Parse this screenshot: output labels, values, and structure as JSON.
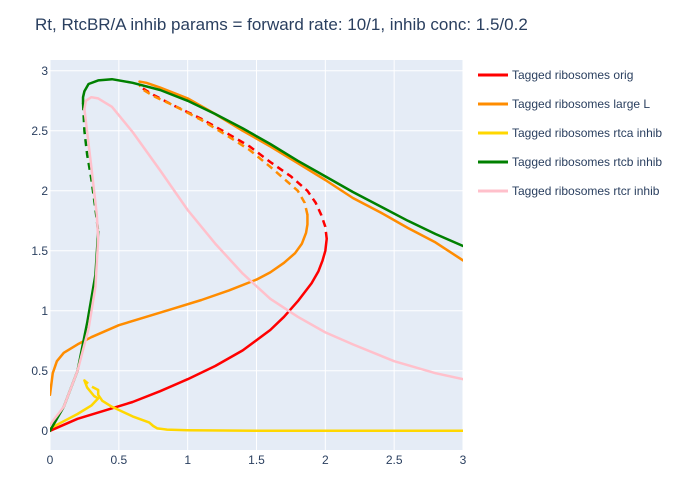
{
  "chart_data": {
    "type": "line",
    "title": "Rt, RtcBR/A inhib params = forward rate: 10/1, inhib conc: 1.5/0.2",
    "xlabel": "",
    "ylabel": "",
    "xlim": [
      0,
      3
    ],
    "ylim": [
      -0.16,
      3.09
    ],
    "x_ticks": [
      0,
      0.5,
      1,
      1.5,
      2,
      2.5,
      3
    ],
    "x_tick_labels": [
      "0",
      "0.5",
      "1",
      "1.5",
      "2",
      "2.5",
      "3"
    ],
    "y_ticks": [
      0,
      0.5,
      1,
      1.5,
      2,
      2.5,
      3
    ],
    "y_tick_labels": [
      "0",
      "0.5",
      "1",
      "1.5",
      "2",
      "2.5",
      "3"
    ],
    "grid": true,
    "legend_position": "right",
    "background": "#E5ECF6",
    "series": [
      {
        "name": "Tagged ribosomes orig",
        "color": "#FF0000",
        "solid": [
          [
            0.0,
            0.0
          ],
          [
            0.2,
            0.1
          ],
          [
            0.4,
            0.17
          ],
          [
            0.6,
            0.24
          ],
          [
            0.8,
            0.33
          ],
          [
            1.0,
            0.43
          ],
          [
            1.2,
            0.54
          ],
          [
            1.4,
            0.67
          ],
          [
            1.6,
            0.84
          ],
          [
            1.7,
            0.95
          ],
          [
            1.8,
            1.08
          ],
          [
            1.9,
            1.23
          ],
          [
            1.95,
            1.33
          ],
          [
            1.98,
            1.42
          ],
          [
            2.0,
            1.5
          ],
          [
            2.01,
            1.6
          ]
        ],
        "dashed": [
          [
            2.01,
            1.6
          ],
          [
            2.0,
            1.7
          ],
          [
            1.97,
            1.8
          ],
          [
            1.93,
            1.9
          ],
          [
            1.87,
            2.0
          ],
          [
            1.75,
            2.12
          ],
          [
            1.6,
            2.24
          ],
          [
            1.45,
            2.37
          ],
          [
            1.3,
            2.47
          ],
          [
            1.1,
            2.6
          ],
          [
            0.9,
            2.71
          ],
          [
            0.75,
            2.8
          ],
          [
            0.65,
            2.87
          ]
        ]
      },
      {
        "name": "Tagged ribosomes large L",
        "color": "#FF8C00",
        "solid": [
          [
            3.0,
            1.42
          ],
          [
            2.8,
            1.57
          ],
          [
            2.6,
            1.69
          ],
          [
            2.4,
            1.82
          ],
          [
            2.2,
            1.94
          ],
          [
            2.0,
            2.09
          ],
          [
            1.8,
            2.23
          ],
          [
            1.6,
            2.37
          ],
          [
            1.4,
            2.5
          ],
          [
            1.2,
            2.64
          ],
          [
            1.0,
            2.77
          ],
          [
            0.8,
            2.86
          ],
          [
            0.7,
            2.9
          ],
          [
            0.65,
            2.91
          ]
        ],
        "solid2": [
          [
            0.0,
            0.3
          ],
          [
            0.02,
            0.48
          ],
          [
            0.05,
            0.58
          ],
          [
            0.1,
            0.65
          ],
          [
            0.2,
            0.72
          ],
          [
            0.3,
            0.78
          ],
          [
            0.5,
            0.88
          ],
          [
            0.7,
            0.95
          ],
          [
            0.9,
            1.02
          ],
          [
            1.1,
            1.09
          ],
          [
            1.3,
            1.17
          ],
          [
            1.5,
            1.26
          ],
          [
            1.6,
            1.32
          ],
          [
            1.7,
            1.4
          ],
          [
            1.78,
            1.48
          ],
          [
            1.83,
            1.56
          ],
          [
            1.86,
            1.65
          ],
          [
            1.87,
            1.72
          ],
          [
            1.87,
            1.8
          ]
        ],
        "dashed": [
          [
            1.87,
            1.8
          ],
          [
            1.85,
            1.9
          ],
          [
            1.8,
            2.0
          ],
          [
            1.72,
            2.08
          ],
          [
            1.6,
            2.2
          ],
          [
            1.45,
            2.34
          ],
          [
            1.3,
            2.45
          ],
          [
            1.1,
            2.59
          ],
          [
            0.9,
            2.71
          ],
          [
            0.75,
            2.79
          ],
          [
            0.68,
            2.84
          ],
          [
            0.65,
            2.88
          ]
        ]
      },
      {
        "name": "Tagged ribosomes rtca inhib",
        "color": "#FFD700",
        "solid": [
          [
            3.0,
            0.0
          ],
          [
            2.5,
            0.0
          ],
          [
            2.0,
            0.0
          ],
          [
            1.5,
            0.0
          ],
          [
            1.0,
            0.005
          ],
          [
            0.85,
            0.01
          ],
          [
            0.78,
            0.02
          ],
          [
            0.75,
            0.04
          ],
          [
            0.72,
            0.07
          ],
          [
            0.6,
            0.12
          ],
          [
            0.45,
            0.2
          ],
          [
            0.38,
            0.25
          ],
          [
            0.35,
            0.3
          ],
          [
            0.35,
            0.34
          ]
        ],
        "dashed": [
          [
            0.35,
            0.34
          ],
          [
            0.3,
            0.37
          ],
          [
            0.25,
            0.42
          ]
        ],
        "solid2": [
          [
            0.25,
            0.42
          ],
          [
            0.27,
            0.36
          ],
          [
            0.32,
            0.29
          ],
          [
            0.35,
            0.27
          ],
          [
            0.3,
            0.21
          ],
          [
            0.2,
            0.14
          ],
          [
            0.1,
            0.08
          ],
          [
            0.0,
            0.02
          ]
        ]
      },
      {
        "name": "Tagged ribosomes rtcb inhib",
        "color": "#008000",
        "solid": [
          [
            3.0,
            1.54
          ],
          [
            2.8,
            1.64
          ],
          [
            2.6,
            1.75
          ],
          [
            2.4,
            1.87
          ],
          [
            2.2,
            1.99
          ],
          [
            2.0,
            2.12
          ],
          [
            1.8,
            2.25
          ],
          [
            1.6,
            2.39
          ],
          [
            1.4,
            2.52
          ],
          [
            1.2,
            2.64
          ],
          [
            1.0,
            2.75
          ],
          [
            0.8,
            2.84
          ],
          [
            0.6,
            2.9
          ],
          [
            0.45,
            2.93
          ],
          [
            0.35,
            2.92
          ],
          [
            0.28,
            2.89
          ],
          [
            0.25,
            2.83
          ],
          [
            0.24,
            2.78
          ],
          [
            0.24,
            2.73
          ]
        ],
        "dashed": [
          [
            0.24,
            2.73
          ],
          [
            0.25,
            2.5
          ],
          [
            0.27,
            2.3
          ],
          [
            0.3,
            2.1
          ],
          [
            0.33,
            1.85
          ],
          [
            0.35,
            1.66
          ]
        ],
        "solid2": [
          [
            0.35,
            1.66
          ],
          [
            0.33,
            1.3
          ],
          [
            0.27,
            0.9
          ],
          [
            0.2,
            0.5
          ],
          [
            0.1,
            0.2
          ],
          [
            0.0,
            0.0
          ]
        ]
      },
      {
        "name": "Tagged ribosomes rtcr inhib",
        "color": "#FFC0CB",
        "solid": [
          [
            3.0,
            0.43
          ],
          [
            2.8,
            0.48
          ],
          [
            2.5,
            0.58
          ],
          [
            2.2,
            0.72
          ],
          [
            2.0,
            0.82
          ],
          [
            1.8,
            0.95
          ],
          [
            1.6,
            1.1
          ],
          [
            1.4,
            1.31
          ],
          [
            1.2,
            1.56
          ],
          [
            1.0,
            1.84
          ],
          [
            0.8,
            2.17
          ],
          [
            0.6,
            2.49
          ],
          [
            0.45,
            2.7
          ],
          [
            0.35,
            2.77
          ],
          [
            0.3,
            2.78
          ],
          [
            0.26,
            2.75
          ],
          [
            0.25,
            2.68
          ]
        ],
        "solid2": [
          [
            0.25,
            2.68
          ],
          [
            0.3,
            2.2
          ],
          [
            0.34,
            1.8
          ],
          [
            0.35,
            1.6
          ],
          [
            0.33,
            1.2
          ],
          [
            0.28,
            0.85
          ],
          [
            0.2,
            0.5
          ],
          [
            0.1,
            0.2
          ],
          [
            0.0,
            0.05
          ]
        ]
      }
    ]
  }
}
